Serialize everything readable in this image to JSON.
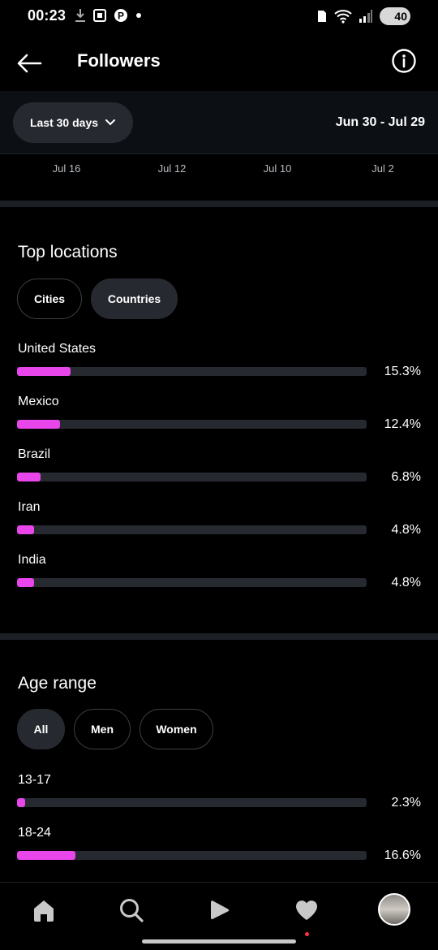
{
  "status_bar": {
    "time": "00:23",
    "battery": "40"
  },
  "header": {
    "title": "Followers"
  },
  "filter": {
    "period_label": "Last 30 days",
    "date_range": "Jun 30 - Jul 29"
  },
  "axis_labels": [
    "Jul 16",
    "Jul 12",
    "Jul 10",
    "Jul 2"
  ],
  "top_locations": {
    "title": "Top locations",
    "chips": [
      {
        "label": "Cities",
        "active": false
      },
      {
        "label": "Countries",
        "active": true
      }
    ],
    "items": [
      {
        "label": "United States",
        "value": "15.3%",
        "fraction": 0.153
      },
      {
        "label": "Mexico",
        "value": "12.4%",
        "fraction": 0.124
      },
      {
        "label": "Brazil",
        "value": "6.8%",
        "fraction": 0.068
      },
      {
        "label": "Iran",
        "value": "4.8%",
        "fraction": 0.048
      },
      {
        "label": "India",
        "value": "4.8%",
        "fraction": 0.048
      }
    ]
  },
  "age_range": {
    "title": "Age range",
    "chips": [
      {
        "label": "All",
        "active": true
      },
      {
        "label": "Men",
        "active": false
      },
      {
        "label": "Women",
        "active": false
      }
    ],
    "items": [
      {
        "label": "13-17",
        "value": "2.3%",
        "fraction": 0.023
      },
      {
        "label": "18-24",
        "value": "16.6%",
        "fraction": 0.166
      }
    ]
  },
  "colors": {
    "accent_bar": "#e845ea",
    "track": "#262a30",
    "notification": "#ff3040"
  },
  "bottom_nav": [
    "home-icon",
    "search-icon",
    "reels-icon",
    "activity-heart-icon",
    "profile-avatar"
  ]
}
